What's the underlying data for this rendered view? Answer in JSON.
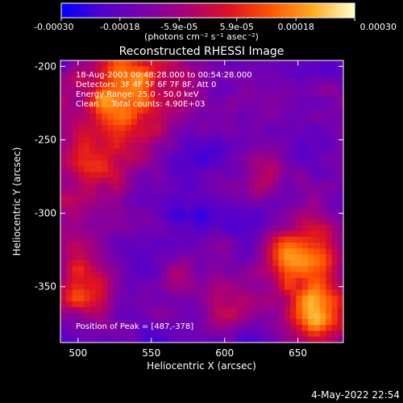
{
  "chart_data": {
    "type": "heatmap",
    "title": "Reconstructed RHESSI Image",
    "xlabel": "Heliocentric X (arcsec)",
    "ylabel": "Heliocentric Y (arcsec)",
    "xlim": [
      488,
      681
    ],
    "ylim": [
      -388,
      -196
    ],
    "x_ticks": [
      500,
      550,
      600,
      650
    ],
    "y_ticks": [
      -200,
      -250,
      -300,
      -350
    ],
    "colorbar": {
      "range": [
        -0.0003,
        0.0003
      ],
      "tick_values": [
        -0.0003,
        -0.00018,
        -5.9e-05,
        5.9e-05,
        0.00018,
        0.0003
      ],
      "tick_labels": [
        "-0.00030",
        "-0.00018",
        "-5.9e-05",
        "5.9e-05",
        "0.00018",
        "0.00030"
      ],
      "units": "(photons cm⁻² s⁻¹ asec⁻²)",
      "colors": [
        "#0000ff",
        "#5500cc",
        "#7a00aa",
        "#aa0077",
        "#dd1122",
        "#ff5500",
        "#ffaa22",
        "#ffffcc"
      ]
    },
    "annotations": [
      "18-Aug-2003 00:48:28.000 to 00:54:28.000",
      "Detectors: 3F 4F 5F 6F 7F 8F, Att 0",
      "Energy Range: 25.0 - 50.0 keV",
      "Clean     Total counts: 4.90E+03"
    ],
    "peak_label": "Position of Peak = [487,-378]",
    "peak": {
      "x": 487,
      "y": -378
    }
  },
  "timestamp": "4-May-2022 22:54"
}
